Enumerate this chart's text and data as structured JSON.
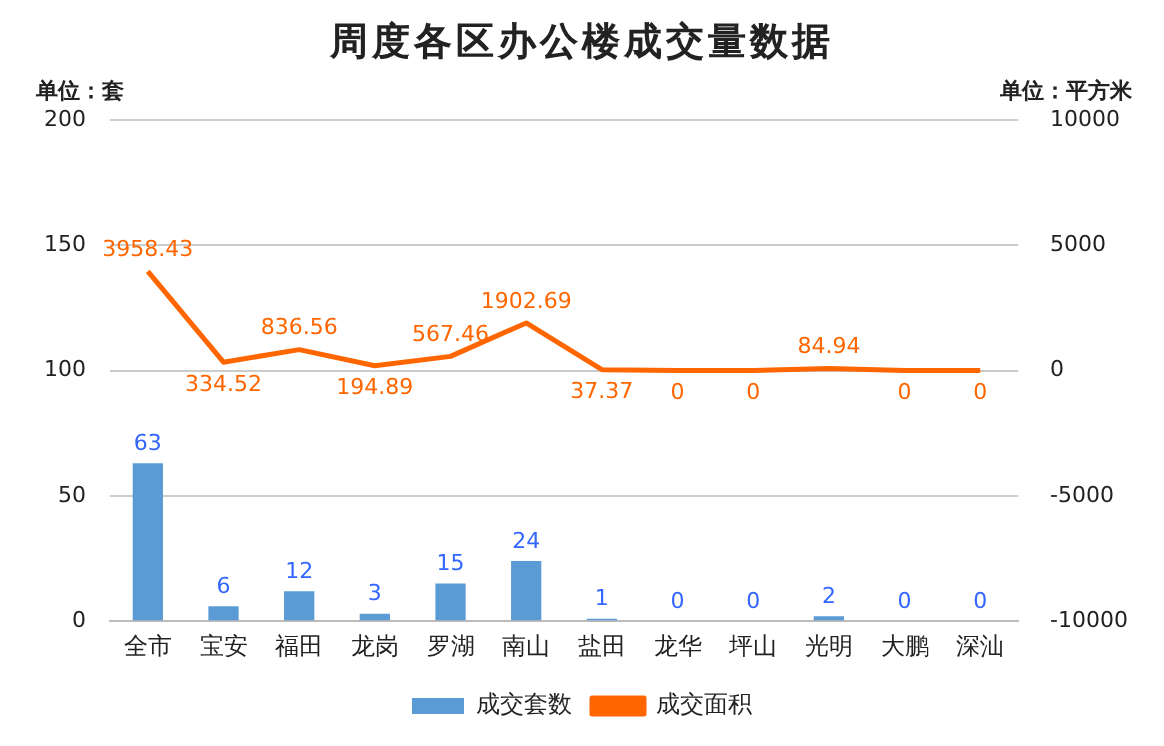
{
  "chart_data": {
    "type": "bar",
    "title": "周度各区办公楼成交量数据",
    "ylabel": "单位：套",
    "y2label": "单位：平方米",
    "categories": [
      "全市",
      "宝安",
      "福田",
      "龙岗",
      "罗湖",
      "南山",
      "盐田",
      "龙华",
      "坪山",
      "光明",
      "大鹏",
      "深汕"
    ],
    "series": [
      {
        "name": "成交套数",
        "color": "#5b9bd5",
        "values": [
          63,
          6,
          12,
          3,
          15,
          24,
          1,
          0,
          0,
          2,
          0,
          0
        ]
      },
      {
        "name": "成交面积",
        "type": "line",
        "axis": "y2",
        "color": "#ff6600",
        "values": [
          3958.43,
          334.52,
          836.56,
          194.89,
          567.46,
          1902.69,
          37.37,
          0,
          0,
          84.94,
          0,
          0
        ]
      }
    ],
    "ylim": [
      0,
      200
    ],
    "yticks": [
      0,
      50,
      100,
      150,
      200
    ],
    "y2lim": [
      -10000,
      10000
    ],
    "y2ticks": [
      -10000,
      -5000,
      0,
      5000,
      10000
    ],
    "grid": "y",
    "legend": "bottom",
    "data_labels": true,
    "marker": "none"
  }
}
